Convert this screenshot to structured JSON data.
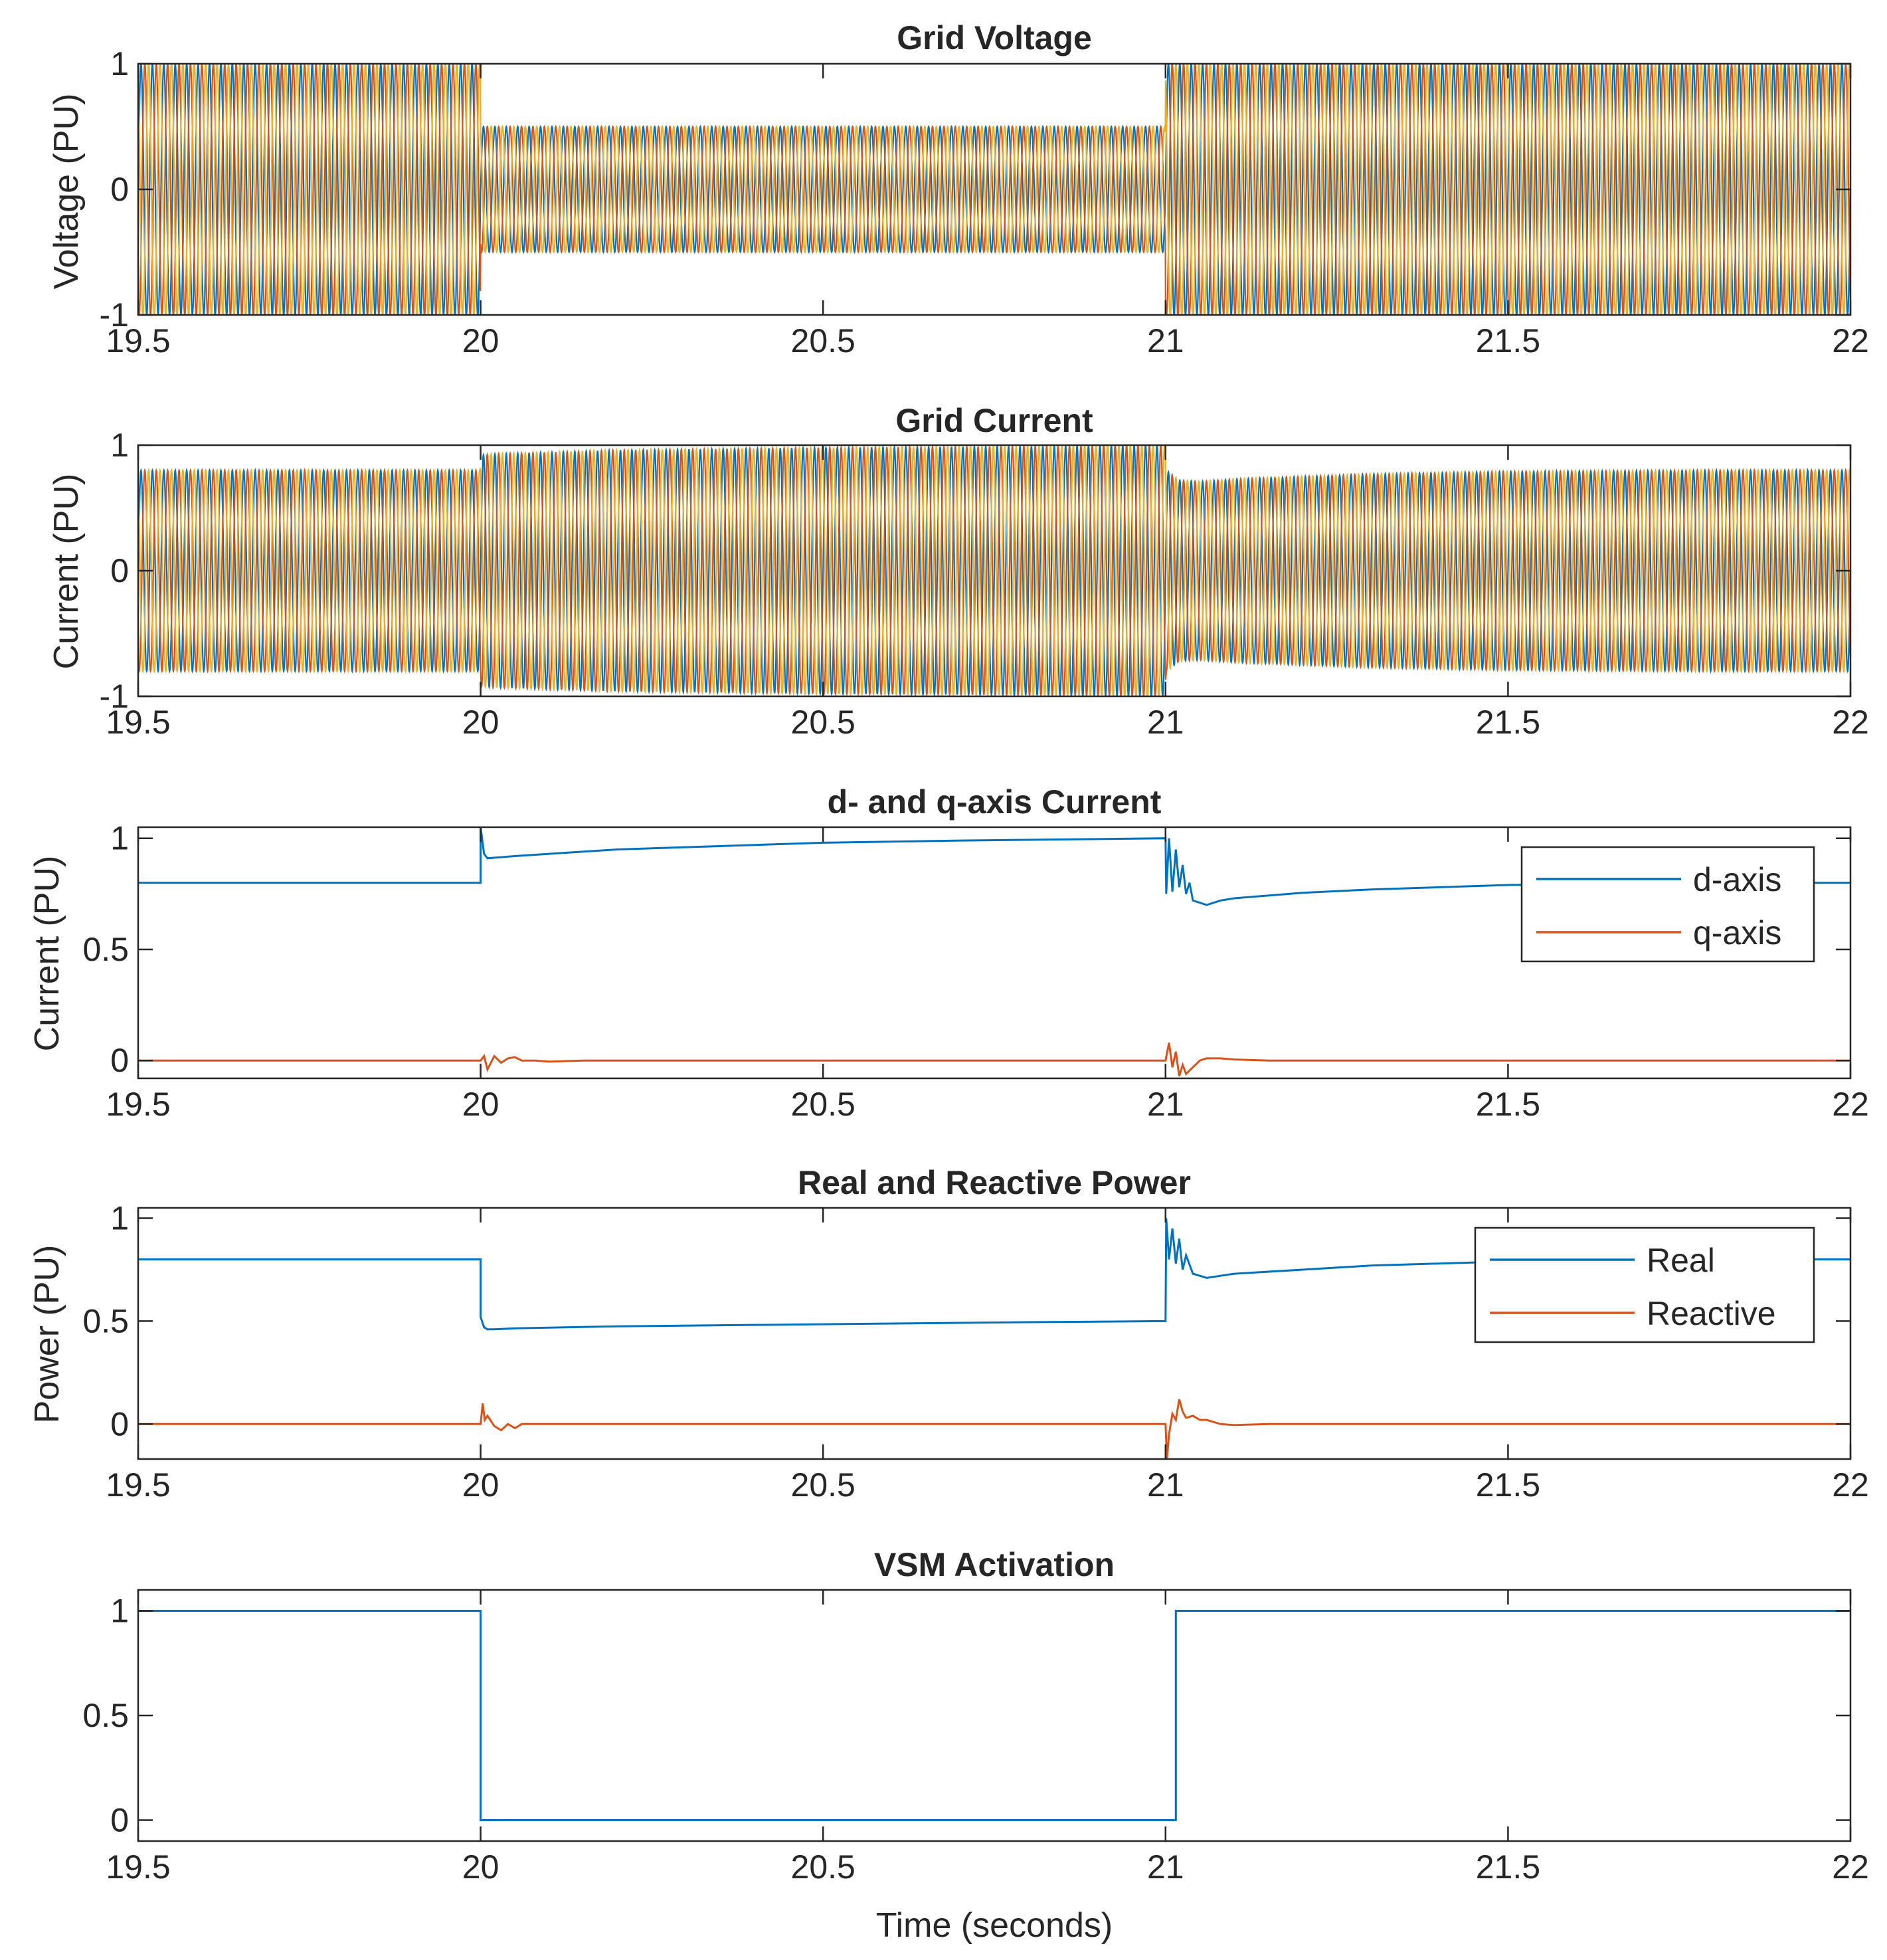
{
  "figure": {
    "xlabel": "Time (seconds)"
  },
  "colors": {
    "blue": "#0072bd",
    "orange": "#d95319",
    "yellow": "#edb120",
    "axis": "#262626",
    "legend_border": "#262626"
  },
  "chart_data": [
    {
      "id": "grid-voltage",
      "type": "line",
      "title": "Grid Voltage",
      "xlabel": "",
      "ylabel": "Voltage (PU)",
      "xlim": [
        19.5,
        22
      ],
      "ylim": [
        -1,
        1
      ],
      "xticks": [
        19.5,
        20,
        20.5,
        21,
        21.5,
        22
      ],
      "xtick_labels": [
        "19.5",
        "20",
        "20.5",
        "21",
        "21.5",
        "22"
      ],
      "yticks": [
        -1,
        0,
        1
      ],
      "ytick_labels": [
        "-1",
        "0",
        "1"
      ],
      "signal": "three-phase-sinusoid",
      "frequency_hz": 60,
      "phases": [
        "a",
        "b",
        "c"
      ],
      "amplitude_segments": [
        {
          "from": 19.5,
          "to": 20.0,
          "amplitude": 1.0
        },
        {
          "from": 20.0,
          "to": 21.0,
          "amplitude": 0.5
        },
        {
          "from": 21.0,
          "to": 22.0,
          "amplitude": 1.0
        }
      ],
      "legend": null
    },
    {
      "id": "grid-current",
      "type": "line",
      "title": "Grid Current",
      "xlabel": "",
      "ylabel": "Current (PU)",
      "xlim": [
        19.5,
        22
      ],
      "ylim": [
        -1,
        1
      ],
      "xticks": [
        19.5,
        20,
        20.5,
        21,
        21.5,
        22
      ],
      "xtick_labels": [
        "19.5",
        "20",
        "20.5",
        "21",
        "21.5",
        "22"
      ],
      "yticks": [
        -1,
        0,
        1
      ],
      "ytick_labels": [
        "-1",
        "0",
        "1"
      ],
      "signal": "three-phase-sinusoid",
      "frequency_hz": 60,
      "phases": [
        "a",
        "b",
        "c"
      ],
      "amplitude_envelope": {
        "x": [
          19.5,
          19.999,
          20.0,
          20.02,
          20.2,
          20.5,
          20.8,
          21.0,
          21.001,
          21.02,
          21.05,
          21.1,
          21.3,
          21.5,
          21.8,
          22.0
        ],
        "y": [
          0.8,
          0.8,
          0.92,
          0.93,
          0.96,
          0.98,
          0.99,
          1.0,
          0.8,
          0.72,
          0.71,
          0.73,
          0.77,
          0.79,
          0.8,
          0.8
        ]
      },
      "legend": null
    },
    {
      "id": "dq-current",
      "type": "line",
      "title": "d- and q-axis Current",
      "xlabel": "",
      "ylabel": "Current (PU)",
      "xlim": [
        19.5,
        22
      ],
      "ylim": [
        -0.08,
        1.05
      ],
      "xticks": [
        19.5,
        20,
        20.5,
        21,
        21.5,
        22
      ],
      "xtick_labels": [
        "19.5",
        "20",
        "20.5",
        "21",
        "21.5",
        "22"
      ],
      "yticks": [
        0,
        0.5,
        1
      ],
      "ytick_labels": [
        "0",
        "0.5",
        "1"
      ],
      "series": [
        {
          "name": "d-axis",
          "color": "#0072bd",
          "x": [
            19.5,
            20.0,
            20.0,
            20.005,
            20.01,
            20.05,
            20.1,
            20.2,
            20.3,
            20.5,
            20.7,
            21.0,
            21.001,
            21.005,
            21.01,
            21.015,
            21.02,
            21.025,
            21.03,
            21.035,
            21.04,
            21.05,
            21.06,
            21.08,
            21.1,
            21.2,
            21.3,
            21.5,
            21.7,
            22.0
          ],
          "y": [
            0.8,
            0.8,
            1.05,
            0.93,
            0.91,
            0.92,
            0.93,
            0.95,
            0.96,
            0.98,
            0.99,
            1.0,
            0.75,
            1.0,
            0.76,
            0.95,
            0.78,
            0.88,
            0.75,
            0.8,
            0.72,
            0.71,
            0.7,
            0.72,
            0.73,
            0.755,
            0.77,
            0.79,
            0.8,
            0.8
          ]
        },
        {
          "name": "q-axis",
          "color": "#d95319",
          "x": [
            19.5,
            20.0,
            20.005,
            20.01,
            20.02,
            20.03,
            20.04,
            20.05,
            20.06,
            20.08,
            20.1,
            20.15,
            20.3,
            21.0,
            21.005,
            21.01,
            21.015,
            21.02,
            21.025,
            21.03,
            21.04,
            21.05,
            21.06,
            21.08,
            21.1,
            21.15,
            22.0
          ],
          "y": [
            0.0,
            0.0,
            0.02,
            -0.04,
            0.02,
            -0.01,
            0.01,
            0.015,
            0.0,
            0.0,
            -0.005,
            0.0,
            0.0,
            0.0,
            0.08,
            -0.03,
            0.04,
            -0.07,
            -0.02,
            -0.06,
            -0.03,
            0.0,
            0.01,
            0.01,
            0.005,
            0.0,
            0.0
          ]
        }
      ],
      "legend": {
        "entries": [
          "d-axis",
          "q-axis"
        ],
        "location": "top-right"
      }
    },
    {
      "id": "real-reactive-power",
      "type": "line",
      "title": "Real and Reactive Power",
      "xlabel": "",
      "ylabel": "Power (PU)",
      "xlim": [
        19.5,
        22
      ],
      "ylim": [
        -0.17,
        1.05
      ],
      "xticks": [
        19.5,
        20,
        20.5,
        21,
        21.5,
        22
      ],
      "xtick_labels": [
        "19.5",
        "20",
        "20.5",
        "21",
        "21.5",
        "22"
      ],
      "yticks": [
        0,
        0.5,
        1
      ],
      "ytick_labels": [
        "0",
        "0.5",
        "1"
      ],
      "series": [
        {
          "name": "Real",
          "color": "#0072bd",
          "x": [
            19.5,
            20.0,
            20.0,
            20.005,
            20.01,
            20.02,
            20.05,
            20.2,
            20.5,
            20.8,
            21.0,
            21.001,
            21.005,
            21.01,
            21.015,
            21.02,
            21.025,
            21.03,
            21.04,
            21.05,
            21.06,
            21.08,
            21.1,
            21.2,
            21.3,
            21.5,
            21.7,
            22.0
          ],
          "y": [
            0.8,
            0.8,
            0.52,
            0.47,
            0.46,
            0.46,
            0.465,
            0.475,
            0.485,
            0.495,
            0.5,
            1.0,
            0.8,
            0.95,
            0.78,
            0.9,
            0.75,
            0.82,
            0.73,
            0.72,
            0.71,
            0.72,
            0.73,
            0.75,
            0.77,
            0.79,
            0.8,
            0.8
          ]
        },
        {
          "name": "Reactive",
          "color": "#d95319",
          "x": [
            19.5,
            20.0,
            20.003,
            20.006,
            20.01,
            20.02,
            20.03,
            20.04,
            20.05,
            20.06,
            20.08,
            20.1,
            20.2,
            21.0,
            21.002,
            21.005,
            21.01,
            21.015,
            21.02,
            21.025,
            21.03,
            21.04,
            21.05,
            21.06,
            21.08,
            21.1,
            21.15,
            21.2,
            22.0
          ],
          "y": [
            0.0,
            0.0,
            0.1,
            0.02,
            0.04,
            -0.01,
            -0.03,
            0.0,
            -0.02,
            0.0,
            0.0,
            0.0,
            0.0,
            0.0,
            -0.17,
            -0.05,
            0.05,
            0.02,
            0.12,
            0.06,
            0.03,
            0.04,
            0.02,
            0.02,
            0.0,
            -0.005,
            0.0,
            0.0,
            0.0
          ]
        }
      ],
      "legend": {
        "entries": [
          "Real",
          "Reactive"
        ],
        "location": "top-right"
      }
    },
    {
      "id": "vsm-activation",
      "type": "line",
      "title": "VSM Activation",
      "xlabel": "Time (seconds)",
      "ylabel": "",
      "xlim": [
        19.5,
        22
      ],
      "ylim": [
        -0.1,
        1.1
      ],
      "xticks": [
        19.5,
        20,
        20.5,
        21,
        21.5,
        22
      ],
      "xtick_labels": [
        "19.5",
        "20",
        "20.5",
        "21",
        "21.5",
        "22"
      ],
      "yticks": [
        0,
        0.5,
        1
      ],
      "ytick_labels": [
        "0",
        "0.5",
        "1"
      ],
      "series": [
        {
          "name": "VSM",
          "color": "#0072bd",
          "x": [
            19.5,
            20.0,
            20.0,
            21.015,
            21.015,
            22.0
          ],
          "y": [
            1,
            1,
            0,
            0,
            1,
            1
          ]
        }
      ],
      "legend": null
    }
  ]
}
